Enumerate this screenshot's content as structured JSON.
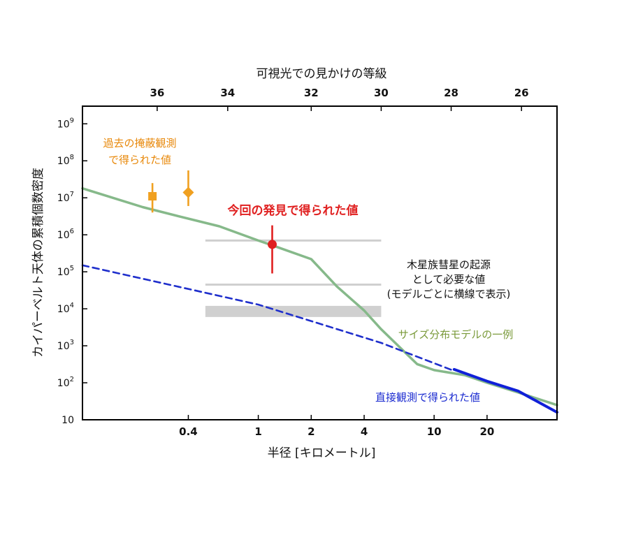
{
  "chart_data": {
    "type": "line",
    "top_axis": {
      "label": "可視光での見かけの等級",
      "ticks": [
        {
          "mag": 36,
          "label": "36",
          "radius_km": 0.266
        },
        {
          "mag": 34,
          "label": "34",
          "radius_km": 0.67
        },
        {
          "mag": 32,
          "label": "32",
          "radius_km": 2.0
        },
        {
          "mag": 30,
          "label": "30",
          "radius_km": 5.0
        },
        {
          "mag": 28,
          "label": "28",
          "radius_km": 12.5
        },
        {
          "mag": 26,
          "label": "26",
          "radius_km": 31.4
        }
      ]
    },
    "x_axis": {
      "label": "半径 [キロメートル]",
      "scale": "log",
      "range": [
        0.1,
        50
      ],
      "ticks": [
        {
          "value": 0.4,
          "label": "0.4"
        },
        {
          "value": 1,
          "label": "1"
        },
        {
          "value": 2,
          "label": "2"
        },
        {
          "value": 4,
          "label": "4"
        },
        {
          "value": 10,
          "label": "10"
        },
        {
          "value": 20,
          "label": "20"
        }
      ]
    },
    "y_axis": {
      "label": "カイパーベルト天体の累積個数密度",
      "scale": "log",
      "range": [
        10,
        3000000000.0
      ],
      "ticks": [
        {
          "value": 10,
          "base": "10",
          "exp": ""
        },
        {
          "value": 100,
          "base": "10",
          "exp": "2"
        },
        {
          "value": 1000,
          "base": "10",
          "exp": "3"
        },
        {
          "value": 10000,
          "base": "10",
          "exp": "4"
        },
        {
          "value": 100000,
          "base": "10",
          "exp": "5"
        },
        {
          "value": 1000000,
          "base": "10",
          "exp": "6"
        },
        {
          "value": 10000000,
          "base": "10",
          "exp": "7"
        },
        {
          "value": 100000000,
          "base": "10",
          "exp": "8"
        },
        {
          "value": 1000000000,
          "base": "10",
          "exp": "9"
        }
      ]
    },
    "series": [
      {
        "key": "model",
        "color": "#86b98a",
        "dash": "solid",
        "points": [
          [
            0.1,
            18000000
          ],
          [
            0.22,
            5600000
          ],
          [
            0.35,
            3200000
          ],
          [
            0.6,
            1700000
          ],
          [
            1,
            700000
          ],
          [
            1.2,
            520000
          ],
          [
            2,
            220000
          ],
          [
            2.8,
            40000
          ],
          [
            4,
            9000
          ],
          [
            5,
            2800
          ],
          [
            8,
            320
          ],
          [
            10,
            220
          ],
          [
            15,
            160
          ],
          [
            20,
            100
          ],
          [
            30,
            55
          ],
          [
            50,
            25
          ]
        ]
      },
      {
        "key": "extrapolation",
        "color": "#1f2fcc",
        "dash": "dashed",
        "points": [
          [
            0.1,
            150000
          ],
          [
            1,
            13000
          ],
          [
            5,
            1200
          ],
          [
            13,
            210
          ]
        ]
      },
      {
        "key": "direct",
        "color": "#1020d8",
        "dash": "solid",
        "points": [
          [
            13,
            230
          ],
          [
            15,
            180
          ],
          [
            20,
            110
          ],
          [
            30,
            60
          ],
          [
            50,
            16
          ]
        ]
      }
    ],
    "points": [
      {
        "key": "occultation_1",
        "x": 0.25,
        "y": 11000000,
        "y_low": 4000000,
        "y_high": 25000000,
        "marker": "square",
        "color": "#f0a020"
      },
      {
        "key": "occultation_2",
        "x": 0.4,
        "y": 14000000,
        "y_low": 6000000,
        "y_high": 55000000,
        "marker": "diamond",
        "color": "#f0a020"
      },
      {
        "key": "this_discovery",
        "x": 1.2,
        "y": 550000,
        "y_low": 90000,
        "y_high": 1800000,
        "marker": "circle",
        "color": "#e02020"
      }
    ],
    "requirement_lines": [
      {
        "x_from": 0.5,
        "x_to": 5,
        "y": 700000,
        "y_low": 700000,
        "y_high": 700000
      },
      {
        "x_from": 0.5,
        "x_to": 5,
        "y": 45000,
        "y_low": 45000,
        "y_high": 45000
      },
      {
        "x_from": 0.5,
        "x_to": 5,
        "y": 8000,
        "y_low": 6000,
        "y_high": 12000
      }
    ],
    "annotations": {
      "occultation": {
        "lines": [
          "過去の掩蔽観測",
          "で得られた値"
        ],
        "color": "#e8880a"
      },
      "discovery": {
        "text": "今回の発見で得られた値",
        "color": "#e02020"
      },
      "requirement": {
        "lines": [
          "木星族彗星の起源",
          "として必要な値",
          "(モデルごとに横線で表示)"
        ],
        "color": "#111111"
      },
      "model": {
        "text": "サイズ分布モデルの一例",
        "color": "#7a9a3a"
      },
      "direct": {
        "text": "直接観測で得られた値",
        "color": "#1a2ad0"
      }
    }
  }
}
